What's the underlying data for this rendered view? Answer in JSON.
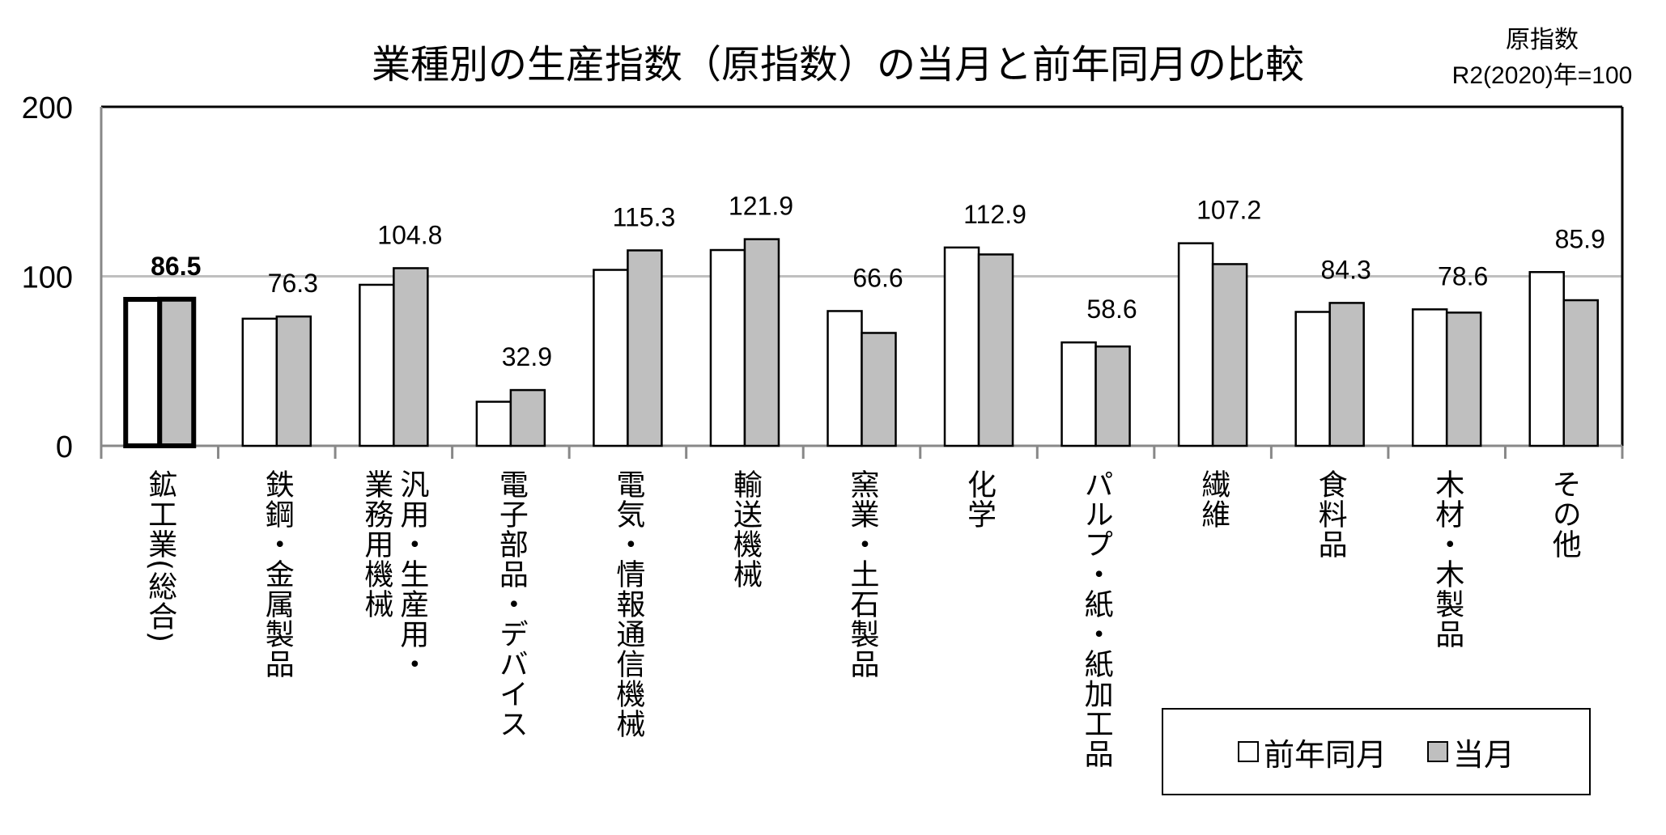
{
  "chart_data": {
    "type": "bar",
    "title": "業種別の生産指数（原指数）の当月と前年同月の比較",
    "unit_note": [
      "原指数",
      "R2(2020)年=100"
    ],
    "categories": [
      "鉱工業(総合)",
      "鉄鋼・金属製品",
      "汎用・生産用・\n業務用機械",
      "電子部品・デバイス",
      "電気・情報通信機械",
      "輸送機械",
      "窯業・土石製品",
      "化学",
      "パルプ・紙・紙加工品",
      "繊維",
      "食料品",
      "木材・木製品",
      "その他"
    ],
    "series": [
      {
        "name": "前年同月",
        "color": "#ffffff",
        "values": [
          86.4,
          75.0,
          95.0,
          26.0,
          103.8,
          115.5,
          79.5,
          117.0,
          61.0,
          119.5,
          79.0,
          80.5,
          102.5
        ]
      },
      {
        "name": "当月",
        "color": "#bfbfbf",
        "values": [
          86.5,
          76.3,
          104.8,
          32.9,
          115.3,
          121.9,
          66.6,
          112.9,
          58.6,
          107.2,
          84.3,
          78.6,
          85.9
        ]
      }
    ],
    "data_labels": [
      "86.5",
      "76.3",
      "104.8",
      "32.9",
      "115.3",
      "121.9",
      "66.6",
      "112.9",
      "58.6",
      "107.2",
      "84.3",
      "78.6",
      "85.9"
    ],
    "yticks": [
      "0",
      "100",
      "200"
    ],
    "ylim": [
      0,
      200
    ],
    "grid": true,
    "legend_position": "bottom-right"
  }
}
